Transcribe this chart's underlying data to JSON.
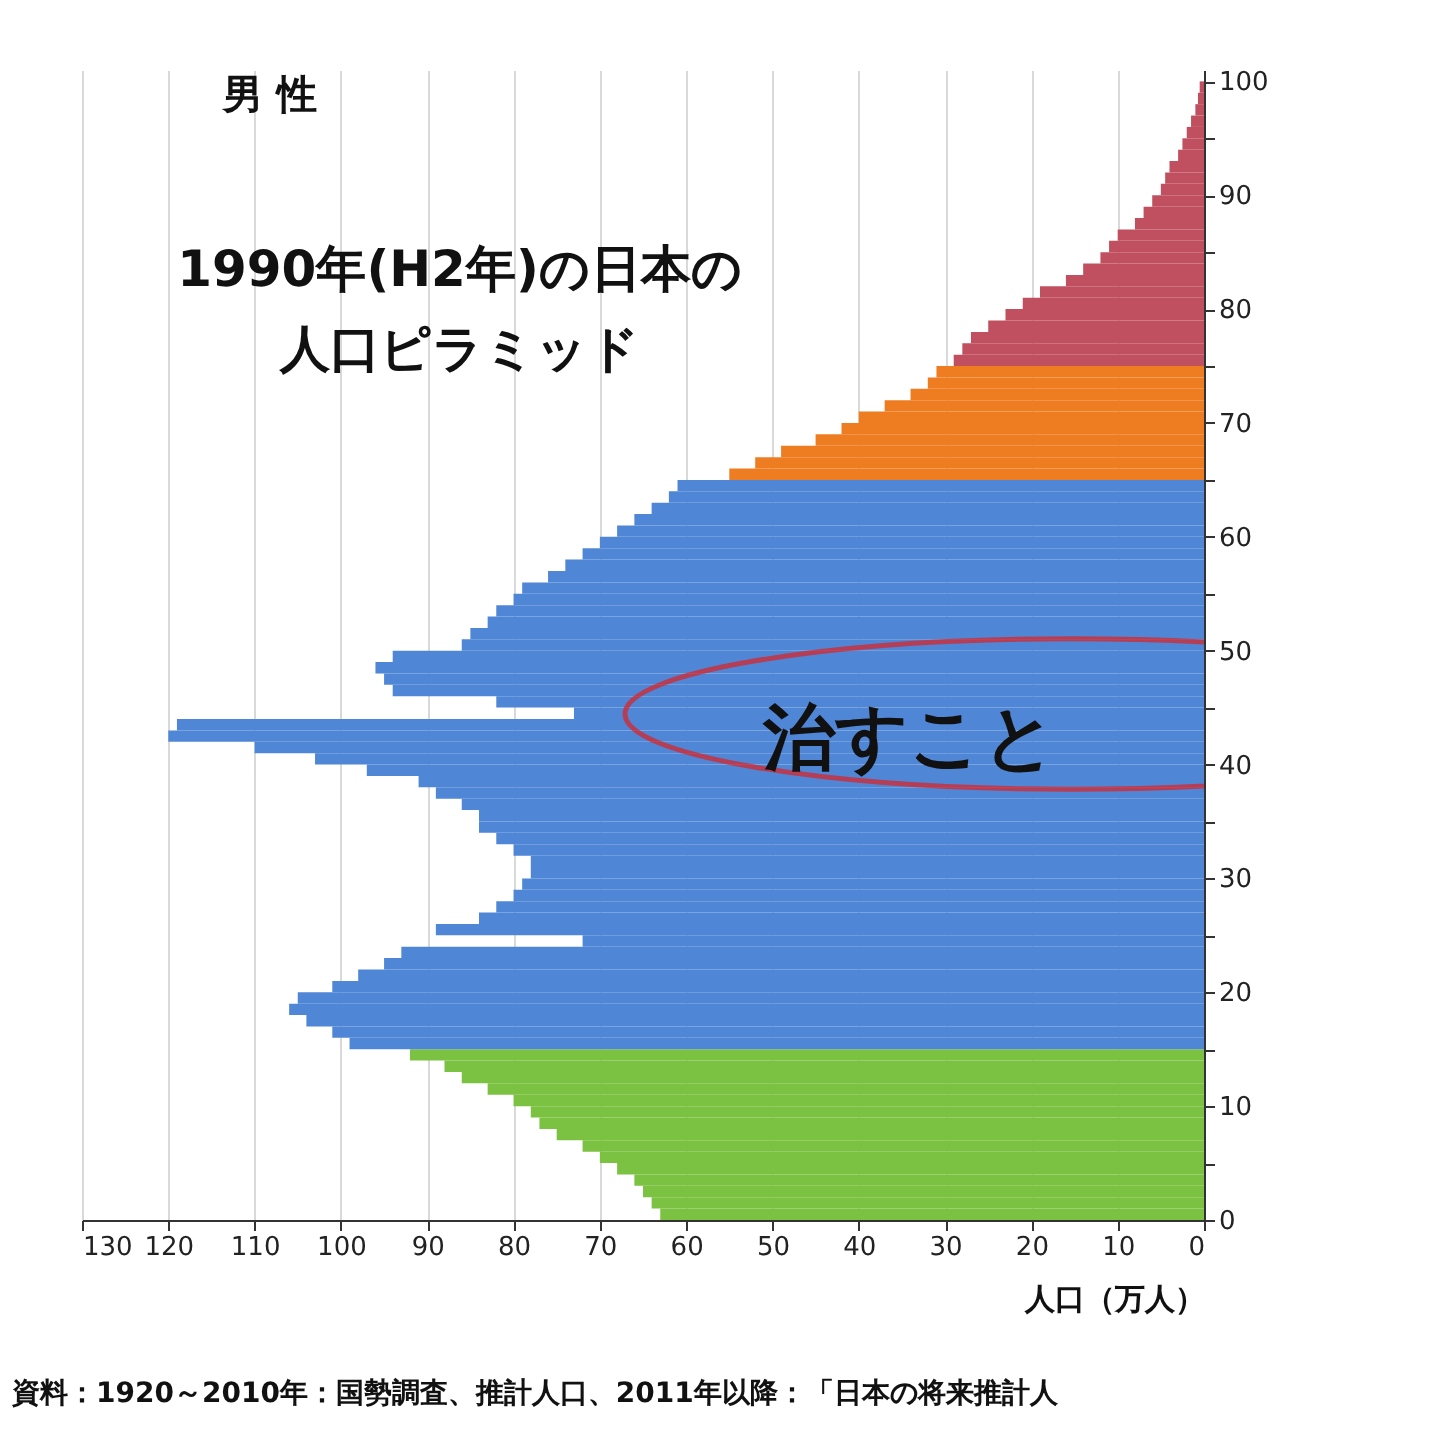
{
  "chart_data": {
    "type": "bar",
    "orientation": "horizontal",
    "title": "1990年(H2年)の日本の人口ピラミッド",
    "xlabel": "人口（万人）",
    "annotations": [
      "男 性",
      "治すこと",
      "資料：1920～2010年：国勢調査、推計人口、2011年以降：「日本の将来推計人"
    ],
    "x": [
      0.5,
      1.5,
      2.5,
      3.5,
      4.5,
      5.5,
      6.5,
      7.5,
      8.5,
      9.5,
      10.5,
      11.5,
      12.5,
      13.5,
      14.5,
      15.5,
      16.5,
      17.5,
      18.5,
      19.5,
      20.5,
      21.5,
      22.5,
      23.5,
      24.5,
      25.5,
      26.5,
      27.5,
      28.5,
      29.5,
      30.5,
      31.5,
      32.5,
      33.5,
      34.5,
      35.5,
      36.5,
      37.5,
      38.5,
      39.5,
      40.5,
      41.5,
      42.5,
      43.5,
      44.5,
      45.5,
      46.5,
      47.5,
      48.5,
      49.5,
      50.5,
      51.5,
      52.5,
      53.5,
      54.5,
      55.5,
      56.5,
      57.5,
      58.5,
      59.5,
      60.5,
      61.5,
      62.5,
      63.5,
      64.5,
      65.5,
      66.5,
      67.5,
      68.5,
      69.5,
      70.5,
      71.5,
      72.5,
      73.5,
      74.5,
      75.5,
      76.5,
      77.5,
      78.5,
      79.5,
      80.5,
      81.5,
      82.5,
      83.5,
      84.5,
      85.5,
      86.5,
      87.5,
      88.5,
      89.5,
      90.5,
      91.5,
      92.5,
      93.5,
      94.5,
      95.5,
      96.5,
      97.5,
      98.5,
      99.5
    ],
    "values": [
      63,
      64,
      65,
      66,
      68,
      70,
      72,
      75,
      77,
      78,
      80,
      83,
      86,
      88,
      92,
      99,
      101,
      104,
      106,
      105,
      101,
      98,
      95,
      93,
      72,
      89,
      84,
      82,
      80,
      79,
      78,
      78,
      80,
      82,
      84,
      84,
      86,
      89,
      91,
      97,
      103,
      110,
      120,
      119,
      73,
      82,
      94,
      95,
      96,
      94,
      86,
      85,
      83,
      82,
      80,
      79,
      76,
      74,
      72,
      70,
      68,
      66,
      64,
      62,
      61,
      55,
      52,
      49,
      45,
      42,
      40,
      37,
      34,
      32,
      31,
      29,
      28,
      27,
      25,
      23,
      21,
      19,
      16,
      14,
      12,
      11,
      10,
      8,
      7,
      6,
      5,
      4.5,
      4,
      3,
      2.5,
      2,
      1.5,
      1,
      0.7,
      0.5
    ],
    "colors": [
      "#7cc242",
      "#7cc242",
      "#7cc242",
      "#7cc242",
      "#7cc242",
      "#7cc242",
      "#7cc242",
      "#7cc242",
      "#7cc242",
      "#7cc242",
      "#7cc242",
      "#7cc242",
      "#7cc242",
      "#7cc242",
      "#7cc242",
      "#4f86d6",
      "#4f86d6",
      "#4f86d6",
      "#4f86d6",
      "#4f86d6",
      "#4f86d6",
      "#4f86d6",
      "#4f86d6",
      "#4f86d6",
      "#4f86d6",
      "#4f86d6",
      "#4f86d6",
      "#4f86d6",
      "#4f86d6",
      "#4f86d6",
      "#4f86d6",
      "#4f86d6",
      "#4f86d6",
      "#4f86d6",
      "#4f86d6",
      "#4f86d6",
      "#4f86d6",
      "#4f86d6",
      "#4f86d6",
      "#4f86d6",
      "#4f86d6",
      "#4f86d6",
      "#4f86d6",
      "#4f86d6",
      "#4f86d6",
      "#4f86d6",
      "#4f86d6",
      "#4f86d6",
      "#4f86d6",
      "#4f86d6",
      "#4f86d6",
      "#4f86d6",
      "#4f86d6",
      "#4f86d6",
      "#4f86d6",
      "#4f86d6",
      "#4f86d6",
      "#4f86d6",
      "#4f86d6",
      "#4f86d6",
      "#4f86d6",
      "#4f86d6",
      "#4f86d6",
      "#4f86d6",
      "#4f86d6",
      "#ee7d22",
      "#ee7d22",
      "#ee7d22",
      "#ee7d22",
      "#ee7d22",
      "#ee7d22",
      "#ee7d22",
      "#ee7d22",
      "#ee7d22",
      "#ee7d22",
      "#c0505f",
      "#c0505f",
      "#c0505f",
      "#c0505f",
      "#c0505f",
      "#c0505f",
      "#c0505f",
      "#c0505f",
      "#c0505f",
      "#c0505f",
      "#c0505f",
      "#c0505f",
      "#c0505f",
      "#c0505f",
      "#c0505f",
      "#c0505f",
      "#c0505f",
      "#c0505f",
      "#c0505f",
      "#c0505f",
      "#c0505f",
      "#c0505f",
      "#c0505f",
      "#c0505f",
      "#c0505f"
    ],
    "xlim": [
      130,
      0
    ],
    "xticks": [
      130,
      120,
      110,
      100,
      90,
      80,
      70,
      60,
      50,
      40,
      30,
      20,
      10,
      0
    ],
    "ylim": [
      0,
      101
    ],
    "yticks": [
      0,
      {
        "value": 5,
        "label": null
      },
      10,
      {
        "value": 15,
        "label": null
      },
      20,
      {
        "value": 25,
        "label": null
      },
      30,
      {
        "value": 35,
        "label": null
      },
      40,
      {
        "value": 45,
        "label": null
      },
      50,
      {
        "value": 55,
        "label": null
      },
      60,
      {
        "value": 65,
        "label": null
      },
      70,
      {
        "value": 75,
        "label": null
      },
      80,
      {
        "value": 85,
        "label": null
      },
      90,
      {
        "value": 95,
        "label": null
      },
      100
    ],
    "grid": "x"
  }
}
